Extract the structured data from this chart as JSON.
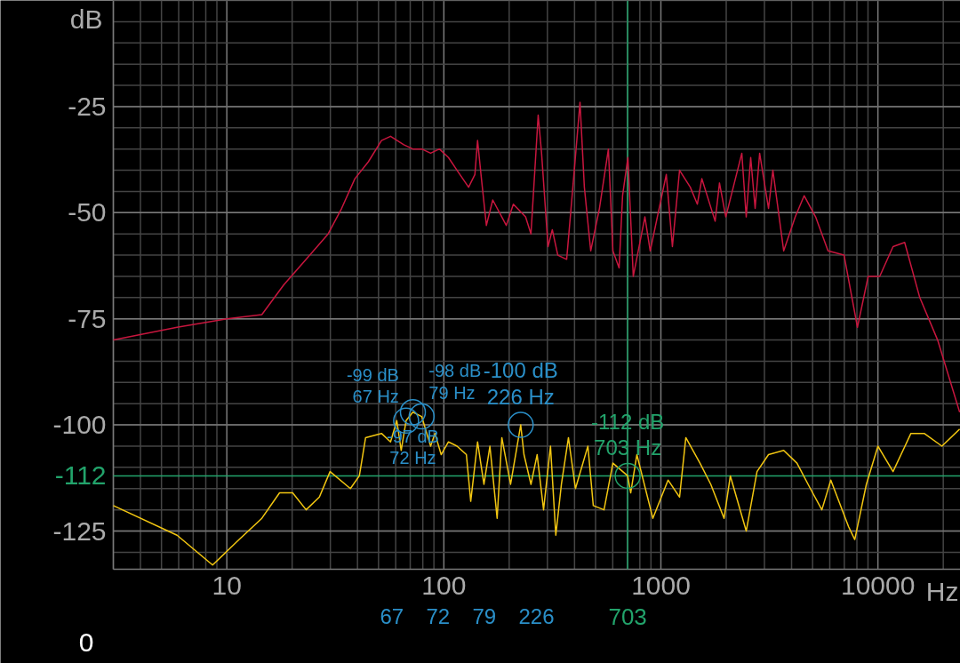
{
  "chart_data": {
    "type": "line",
    "ylabel": "dB",
    "xlabel": "Hz",
    "log": "x",
    "grid": true,
    "marker": "none",
    "line_style": "solid",
    "xlim": [
      3,
      24000
    ],
    "xticks": [
      10,
      100,
      1000,
      10000
    ],
    "ylim": [
      -134,
      0
    ],
    "yticks": [
      -25,
      -50,
      -75,
      -100,
      -125
    ],
    "series": [
      {
        "color": "#c8163e",
        "x": [
          3,
          5.9,
          10,
          14.5,
          18.3,
          23.2,
          29.3,
          33.8,
          38.9,
          44.9,
          51.6,
          56.8,
          65.4,
          71.9,
          79.1,
          86.9,
          95.4,
          105,
          115,
          130,
          139,
          143,
          149,
          157,
          168,
          194,
          209,
          238,
          252,
          264,
          272,
          282,
          302,
          316,
          335,
          368,
          393,
          424,
          444,
          475,
          521,
          573,
          601,
          642,
          666,
          705,
          746,
          844,
          893,
          1059,
          1130,
          1219,
          1366,
          1472,
          1544,
          1778,
          1862,
          1991,
          2360,
          2473,
          2593,
          2718,
          2851,
          3133,
          3281,
          3680,
          4159,
          4571,
          5164,
          5890,
          6982,
          8047,
          9018,
          10190,
          11740,
          13280,
          15590,
          18840,
          23800
        ],
        "values": [
          -80,
          -77,
          -75,
          -74,
          -67,
          -61,
          -55,
          -49,
          -42,
          -38,
          -33,
          -32,
          -34,
          -35,
          -35,
          -36,
          -35,
          -37,
          -40,
          -44,
          -41,
          -33,
          -42,
          -53,
          -47,
          -53,
          -48,
          -51,
          -55,
          -38,
          -27,
          -36,
          -58,
          -54,
          -60,
          -61,
          -44,
          -24,
          -44,
          -59,
          -49,
          -35,
          -59,
          -63,
          -46,
          -37,
          -65,
          -51,
          -59,
          -41,
          -58,
          -40,
          -44,
          -48,
          -42,
          -52,
          -43,
          -51,
          -36,
          -51,
          -37,
          -49,
          -36,
          -49,
          -40,
          -59,
          -51,
          -46,
          -51,
          -59,
          -60,
          -77,
          -65,
          -65,
          -58,
          -57,
          -70,
          -80,
          -97
        ]
      },
      {
        "color": "#f2c611",
        "x": [
          3,
          5.9,
          8.6,
          11.4,
          14.5,
          17.5,
          20.1,
          23.2,
          26.7,
          29.9,
          37.1,
          40.8,
          43.6,
          51.6,
          56.8,
          60.7,
          63.6,
          67,
          72,
          79,
          86.9,
          91,
          97.2,
          105,
          115,
          127,
          133,
          143,
          153,
          163,
          176,
          185,
          203,
          226,
          234,
          252,
          269,
          288,
          310,
          328,
          348,
          375,
          404,
          461,
          488,
          547,
          601,
          703,
          726,
          775,
          918,
          1079,
          1219,
          1303,
          1514,
          1698,
          1955,
          2089,
          2473,
          2773,
          3133,
          3680,
          4236,
          4883,
          5517,
          6067,
          7328,
          7822,
          8845,
          10000,
          11740,
          14190,
          16330,
          19720,
          23800
        ],
        "values": [
          -119,
          -126,
          -133,
          -127,
          -122,
          -116,
          -116,
          -120,
          -117,
          -111,
          -115,
          -112,
          -103,
          -102,
          -104,
          -99,
          -106,
          -99,
          -97,
          -98,
          -105,
          -102,
          -107,
          -104,
          -105,
          -107,
          -118,
          -104,
          -114,
          -105,
          -122,
          -103,
          -114,
          -100,
          -107,
          -114,
          -107,
          -120,
          -105,
          -126,
          -114,
          -103,
          -115,
          -105,
          -119,
          -120,
          -109,
          -112,
          -116,
          -107,
          -122,
          -113,
          -117,
          -103,
          -109,
          -114,
          -122,
          -112,
          -125,
          -111,
          -107,
          -106,
          -109,
          -115,
          -120,
          -113,
          -124,
          -127,
          -114,
          -105,
          -111,
          -102,
          -102,
          -105,
          -101
        ]
      }
    ],
    "ref_lines": [
      {
        "axis": "x",
        "value": 703,
        "label": "703",
        "color": "#22a36b"
      },
      {
        "axis": "y",
        "value": -112,
        "label": "-112",
        "color": "#22a36b"
      }
    ],
    "annotations": [
      {
        "text": "-99 dB\n67 Hz",
        "x": 67,
        "y": -99
      },
      {
        "text": "-97 dB\n72 Hz",
        "x": 72,
        "y": -97
      },
      {
        "text": "-98 dB\n79 Hz",
        "x": 79,
        "y": -98
      },
      {
        "text": "-100 dB\n226 Hz",
        "x": 226,
        "y": -100
      },
      {
        "text": "-112 dB\n703 Hz",
        "x": 703,
        "y": -112
      },
      "0",
      "67",
      "72",
      "79",
      "226"
    ]
  }
}
